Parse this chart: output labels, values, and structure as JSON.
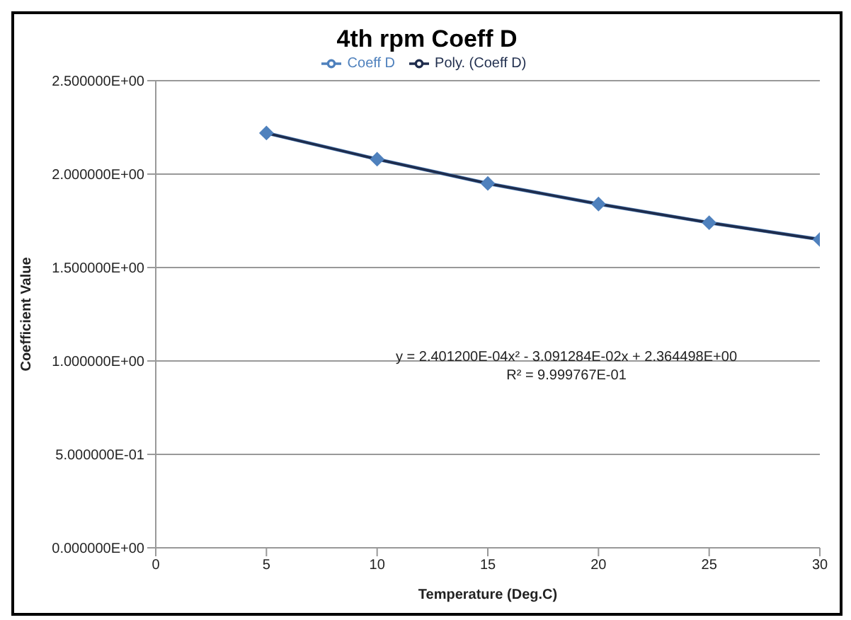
{
  "chart_data": {
    "type": "line",
    "title": "4th rpm Coeff D",
    "xlabel": "Temperature (Deg.C)",
    "ylabel": "Coefficient Value",
    "x": [
      5,
      10,
      15,
      20,
      25,
      30
    ],
    "series": [
      {
        "name": "Coeff D",
        "color": "#4f81bd",
        "marker": "diamond",
        "values": [
          2.22,
          2.08,
          1.95,
          1.84,
          1.74,
          1.65
        ]
      },
      {
        "name": "Poly. (Coeff D)",
        "type": "line",
        "color": "#1f2d4d",
        "marker": "none",
        "x": [
          5,
          10,
          15,
          20,
          25,
          30
        ],
        "values": [
          2.22,
          2.08,
          1.95,
          1.84,
          1.74,
          1.65
        ]
      }
    ],
    "xlim": [
      0,
      30
    ],
    "xticks": [
      0,
      5,
      10,
      15,
      20,
      25,
      30
    ],
    "ylim": [
      0,
      2.5
    ],
    "yticks": [
      {
        "value": 0,
        "label": "0.000000E+00"
      },
      {
        "value": 0.5,
        "label": "5.000000E-01"
      },
      {
        "value": 1,
        "label": "1.000000E+00"
      },
      {
        "value": 1.5,
        "label": "1.500000E+00"
      },
      {
        "value": 2,
        "label": "2.000000E+00"
      },
      {
        "value": 2.5,
        "label": "2.500000E+00"
      }
    ],
    "grid": "y",
    "legend": "top",
    "annotations": [
      "y = 2.401200E-04x² - 3.091284E-02x + 2.364498E+00",
      "R² = 9.999767E-01"
    ]
  }
}
